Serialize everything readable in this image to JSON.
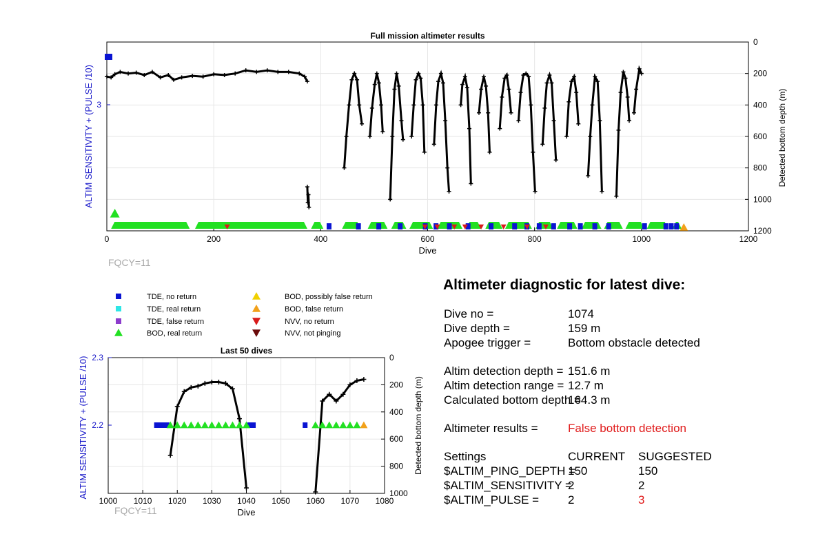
{
  "colors": {
    "tde": "#0a14d2",
    "tde_real": "#2ee6e6",
    "tde_false": "#8c3ccc",
    "bod": "#22e022",
    "bod_possible": "#f0d000",
    "bod_false": "#f2a11a",
    "nvv_no": "#d81a1a",
    "nvv_not": "#6a0b0b",
    "line": "#000000",
    "left_axis": "#1515c8",
    "red_text": "#e01b1b",
    "grid": "#e6e6e6"
  },
  "chart_data": [
    {
      "type": "scatter",
      "title": "Full mission altimeter results",
      "xlabel": "Dive",
      "ylabel_left": "ALTIM SENSITIVITY + (PULSE /10)",
      "ylabel_right": "Detected bottom depth (m)",
      "xlim": [
        0,
        1200
      ],
      "xticks": [
        "0",
        "200",
        "400",
        "600",
        "800",
        "1000",
        "1200"
      ],
      "ylim_right": [
        1200,
        0
      ],
      "yticks_right": [
        "0",
        "200",
        "400",
        "600",
        "800",
        "1000",
        "1200"
      ],
      "yticks_left": [
        "3"
      ],
      "footer": "FQCY=11",
      "series": [
        {
          "kind": "depth_line",
          "segments": [
            [
              [
                0,
                220
              ],
              [
                8,
                225
              ],
              [
                15,
                205
              ],
              [
                25,
                190
              ],
              [
                40,
                200
              ],
              [
                55,
                195
              ],
              [
                70,
                210
              ],
              [
                85,
                190
              ],
              [
                100,
                225
              ],
              [
                115,
                210
              ],
              [
                125,
                240
              ],
              [
                140,
                225
              ],
              [
                160,
                215
              ],
              [
                180,
                220
              ],
              [
                200,
                205
              ],
              [
                220,
                210
              ],
              [
                240,
                200
              ],
              [
                260,
                180
              ],
              [
                280,
                190
              ],
              [
                300,
                180
              ],
              [
                320,
                190
              ],
              [
                340,
                190
              ],
              [
                360,
                200
              ],
              [
                370,
                220
              ],
              [
                375,
                250
              ]
            ],
            [
              [
                375,
                920
              ],
              [
                376,
                1020
              ],
              [
                377,
                970
              ],
              [
                378,
                1050
              ]
            ],
            [
              [
                444,
                800
              ],
              [
                448,
                600
              ],
              [
                453,
                400
              ],
              [
                458,
                240
              ],
              [
                463,
                200
              ],
              [
                468,
                240
              ],
              [
                472,
                400
              ],
              [
                477,
                520
              ]
            ],
            [
              [
                492,
                600
              ],
              [
                496,
                420
              ],
              [
                501,
                270
              ],
              [
                505,
                200
              ],
              [
                509,
                260
              ],
              [
                513,
                400
              ],
              [
                516,
                570
              ]
            ],
            [
              [
                530,
                1000
              ],
              [
                534,
                600
              ],
              [
                538,
                300
              ],
              [
                542,
                200
              ],
              [
                546,
                280
              ],
              [
                551,
                500
              ],
              [
                554,
                620
              ]
            ],
            [
              [
                570,
                600
              ],
              [
                574,
                400
              ],
              [
                578,
                240
              ],
              [
                583,
                200
              ],
              [
                587,
                230
              ],
              [
                591,
                400
              ],
              [
                594,
                700
              ]
            ],
            [
              [
                612,
                650
              ],
              [
                616,
                400
              ],
              [
                620,
                250
              ],
              [
                625,
                200
              ],
              [
                629,
                260
              ],
              [
                633,
                500
              ],
              [
                637,
                800
              ],
              [
                640,
                950
              ]
            ],
            [
              [
                662,
                400
              ],
              [
                665,
                270
              ],
              [
                670,
                220
              ],
              [
                674,
                290
              ],
              [
                678,
                550
              ],
              [
                681,
                900
              ]
            ],
            [
              [
                696,
                450
              ],
              [
                700,
                300
              ],
              [
                705,
                220
              ],
              [
                709,
                280
              ],
              [
                713,
                450
              ],
              [
                716,
                700
              ]
            ],
            [
              [
                735,
                550
              ],
              [
                739,
                350
              ],
              [
                744,
                230
              ],
              [
                748,
                210
              ],
              [
                752,
                300
              ],
              [
                756,
                450
              ]
            ],
            [
              [
                770,
                500
              ],
              [
                774,
                320
              ],
              [
                779,
                210
              ],
              [
                784,
                200
              ],
              [
                789,
                220
              ],
              [
                793,
                400
              ],
              [
                797,
                700
              ],
              [
                801,
                950
              ]
            ],
            [
              [
                815,
                650
              ],
              [
                819,
                420
              ],
              [
                823,
                260
              ],
              [
                828,
                210
              ],
              [
                832,
                260
              ],
              [
                836,
                500
              ],
              [
                840,
                750
              ]
            ],
            [
              [
                860,
                600
              ],
              [
                864,
                380
              ],
              [
                869,
                250
              ],
              [
                874,
                220
              ],
              [
                878,
                320
              ],
              [
                882,
                520
              ]
            ],
            [
              [
                900,
                850
              ],
              [
                904,
                600
              ],
              [
                908,
                400
              ],
              [
                913,
                220
              ],
              [
                918,
                250
              ],
              [
                922,
                500
              ],
              [
                926,
                950
              ]
            ],
            [
              [
                953,
                980
              ],
              [
                957,
                560
              ],
              [
                961,
                320
              ],
              [
                966,
                190
              ],
              [
                970,
                230
              ],
              [
                974,
                350
              ],
              [
                977,
                500
              ]
            ],
            [
              [
                986,
                450
              ],
              [
                990,
                300
              ],
              [
                996,
                170
              ],
              [
                1000,
                200
              ]
            ]
          ]
        },
        {
          "kind": "tde_no_return",
          "x": [
            0,
            415,
            470,
            508,
            548,
            595,
            615,
            640,
            675,
            718,
            762,
            785,
            808,
            835,
            865,
            885,
            912,
            938,
            1005,
            1045,
            1055,
            1065
          ]
        },
        {
          "kind": "bod_real_return",
          "ranges": [
            [
              8,
              155
            ],
            [
              165,
              375
            ],
            [
              382,
              405
            ],
            [
              440,
              475
            ],
            [
              488,
              525
            ],
            [
              532,
              560
            ],
            [
              566,
              610
            ],
            [
              618,
              665
            ],
            [
              672,
              700
            ],
            [
              708,
              740
            ],
            [
              745,
              795
            ],
            [
              802,
              835
            ],
            [
              842,
              880
            ],
            [
              888,
              925
            ],
            [
              930,
              965
            ],
            [
              970,
              1005
            ],
            [
              1010,
              1050
            ],
            [
              1058,
              1075
            ]
          ],
          "outlier_x": 15
        },
        {
          "kind": "bod_false_return",
          "x": [
            1074
          ]
        },
        {
          "kind": "nvv_no_return",
          "x": [
            225,
            595,
            618,
            650,
            670,
            700,
            742,
            786,
            821
          ]
        }
      ]
    },
    {
      "type": "scatter",
      "title": "Last 50 dives",
      "xlabel": "Dive",
      "ylabel_left": "ALTIM SENSITIVITY + (PULSE /10)",
      "ylabel_right": "Detected bottom depth (m)",
      "xlim": [
        1000,
        1080
      ],
      "xticks": [
        "1000",
        "1010",
        "1020",
        "1030",
        "1040",
        "1050",
        "1060",
        "1070",
        "1080"
      ],
      "ylim_left": [
        2.0,
        2.3
      ],
      "yticks_left": [
        "2.3",
        "2.2"
      ],
      "ylim_right": [
        1000,
        0
      ],
      "yticks_right": [
        "0",
        "200",
        "400",
        "600",
        "800",
        "1000"
      ],
      "footer": "FQCY=11",
      "series": [
        {
          "kind": "depth_line",
          "segments": [
            [
              [
                1018,
                720
              ],
              [
                1020,
                360
              ],
              [
                1022,
                250
              ],
              [
                1024,
                220
              ],
              [
                1026,
                210
              ],
              [
                1028,
                190
              ],
              [
                1030,
                180
              ],
              [
                1032,
                180
              ],
              [
                1034,
                190
              ],
              [
                1036,
                230
              ],
              [
                1038,
                450
              ],
              [
                1040,
                960
              ]
            ],
            [
              [
                1060,
                990
              ],
              [
                1062,
                320
              ],
              [
                1064,
                270
              ],
              [
                1066,
                320
              ],
              [
                1068,
                270
              ],
              [
                1070,
                200
              ],
              [
                1072,
                170
              ],
              [
                1074,
                160
              ]
            ]
          ]
        },
        {
          "kind": "tde_no_return",
          "x": [
            1014,
            1015,
            1016,
            1017,
            1041,
            1042,
            1057
          ],
          "y": 2.2
        },
        {
          "kind": "bod_real_return",
          "x": [
            1018,
            1020,
            1022,
            1024,
            1026,
            1028,
            1030,
            1032,
            1034,
            1036,
            1038,
            1040,
            1060,
            1062,
            1064,
            1066,
            1068,
            1070,
            1072
          ],
          "y": 2.2
        },
        {
          "kind": "bod_false_return",
          "x": [
            1074
          ],
          "y": 2.2
        }
      ]
    }
  ],
  "legend": {
    "col1": [
      {
        "label": "TDE, no return",
        "marker": "square",
        "color_key": "tde"
      },
      {
        "label": "TDE, real return",
        "marker": "square",
        "color_key": "tde_real"
      },
      {
        "label": "TDE, false return",
        "marker": "square",
        "color_key": "tde_false"
      },
      {
        "label": "BOD, real return",
        "marker": "triangle-up",
        "color_key": "bod"
      }
    ],
    "col2": [
      {
        "label": "BOD, possibly false return",
        "marker": "triangle-up",
        "color_key": "bod_possible"
      },
      {
        "label": "BOD, false return",
        "marker": "triangle-up",
        "color_key": "bod_false"
      },
      {
        "label": "NVV, no return",
        "marker": "triangle-down",
        "color_key": "nvv_no"
      },
      {
        "label": "NVV, not pinging",
        "marker": "triangle-down",
        "color_key": "nvv_not"
      }
    ]
  },
  "diagnostic": {
    "title": "Altimeter diagnostic for latest dive:",
    "rows1": [
      {
        "label": "Dive no =",
        "value": "1074"
      },
      {
        "label": "Dive depth =",
        "value": "159 m"
      },
      {
        "label": "Apogee trigger =",
        "value": "Bottom obstacle detected"
      }
    ],
    "rows2": [
      {
        "label": "Altim detection depth =",
        "value": "151.6 m"
      },
      {
        "label": "Altim detection range =",
        "value": "12.7 m"
      },
      {
        "label": "Calculated bottom depth =",
        "value": "164.3 m"
      }
    ],
    "results_label": "Altimeter results =",
    "results_value": "False bottom detection",
    "settings_header": {
      "name": "Settings",
      "current": "CURRENT",
      "suggested": "SUGGESTED"
    },
    "settings": [
      {
        "name": "$ALTIM_PING_DEPTH =",
        "current": "150",
        "suggested": "150",
        "changed": false
      },
      {
        "name": "$ALTIM_SENSITIVITY =",
        "current": "2",
        "suggested": "2",
        "changed": false
      },
      {
        "name": "$ALTIM_PULSE =",
        "current": "2",
        "suggested": "3",
        "changed": true
      }
    ]
  }
}
